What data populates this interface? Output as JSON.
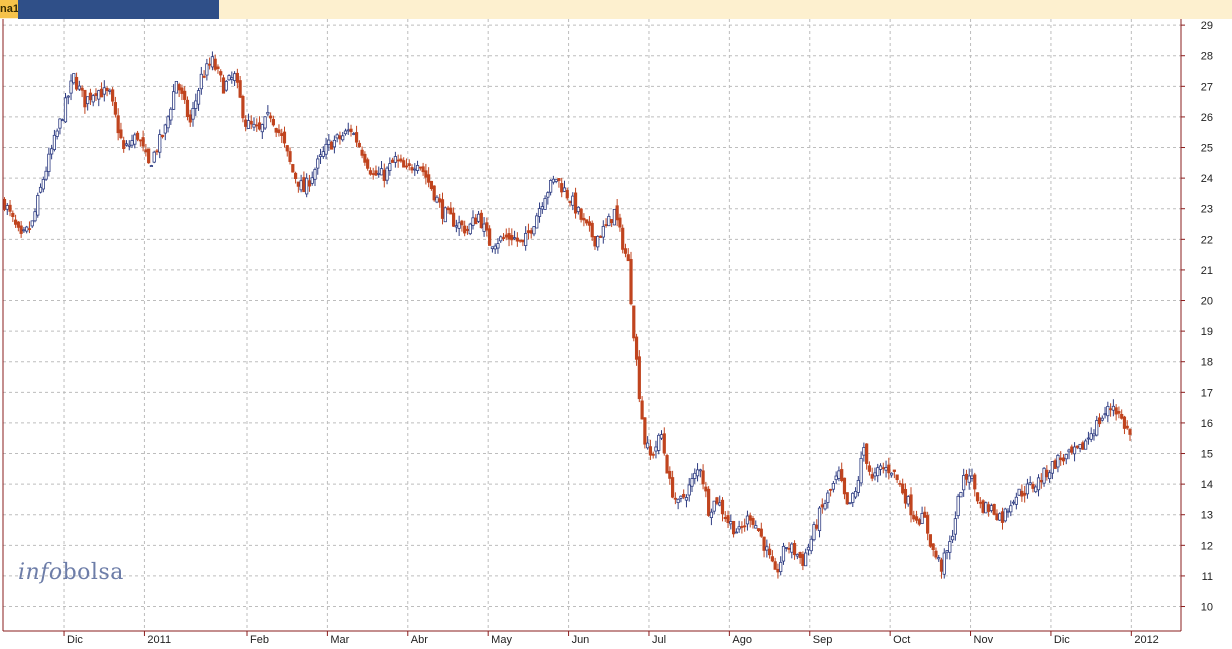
{
  "header": {
    "tab_label": "na1"
  },
  "watermark": {
    "part1": "info",
    "part2": "bolsa"
  },
  "chart_data": {
    "type": "candlestick",
    "y_ticks": [
      10,
      11,
      12,
      13,
      14,
      15,
      16,
      17,
      18,
      19,
      20,
      21,
      22,
      23,
      24,
      25,
      26,
      27,
      28,
      29
    ],
    "ylim": [
      9.2,
      29.2
    ],
    "x_labels": [
      "Dic",
      "2011",
      "Feb",
      "Mar",
      "Abr",
      "May",
      "Jun",
      "Jul",
      "Ago",
      "Sep",
      "Oct",
      "Nov",
      "Dic",
      "2012"
    ],
    "month_index": [
      13,
      42,
      79,
      108,
      137,
      166,
      195,
      224,
      253,
      282,
      311,
      340,
      369,
      398
    ],
    "grid": true,
    "colors": {
      "up": "#2e3c82",
      "down": "#c0441f",
      "grid": "#bdbdbd",
      "frame": "#8a1c1c"
    },
    "n_days": 418,
    "closes": [
      [
        0,
        23.2
      ],
      [
        6,
        22.0
      ],
      [
        10,
        22.5
      ],
      [
        14,
        24.0
      ],
      [
        18,
        25.2
      ],
      [
        25,
        27.3
      ],
      [
        29,
        26.5
      ],
      [
        33,
        26.9
      ],
      [
        38,
        26.7
      ],
      [
        43,
        24.9
      ],
      [
        48,
        25.4
      ],
      [
        52,
        24.4
      ],
      [
        58,
        25.6
      ],
      [
        62,
        27.2
      ],
      [
        67,
        25.8
      ],
      [
        71,
        27.3
      ],
      [
        75,
        27.8
      ],
      [
        79,
        27.0
      ],
      [
        83,
        27.3
      ],
      [
        87,
        25.8
      ],
      [
        92,
        25.5
      ],
      [
        96,
        26.1
      ],
      [
        100,
        25.3
      ],
      [
        104,
        24.2
      ],
      [
        108,
        23.6
      ],
      [
        112,
        24.3
      ],
      [
        117,
        25.1
      ],
      [
        121,
        25.3
      ],
      [
        125,
        25.6
      ],
      [
        129,
        24.9
      ],
      [
        133,
        24.1
      ],
      [
        137,
        24.1
      ],
      [
        141,
        24.6
      ],
      [
        145,
        24.2
      ],
      [
        149,
        24.6
      ],
      [
        154,
        23.7
      ],
      [
        158,
        22.9
      ],
      [
        162,
        22.6
      ],
      [
        167,
        22.3
      ],
      [
        171,
        22.8
      ],
      [
        175,
        21.9
      ],
      [
        179,
        22.0
      ],
      [
        183,
        22.1
      ],
      [
        187,
        21.8
      ],
      [
        191,
        22.6
      ],
      [
        195,
        23.5
      ],
      [
        199,
        24.0
      ],
      [
        202,
        23.6
      ],
      [
        205,
        23.2
      ],
      [
        209,
        22.5
      ],
      [
        213,
        22.0
      ],
      [
        217,
        22.4
      ],
      [
        220,
        22.9
      ],
      [
        222,
        22.2
      ],
      [
        225,
        21.2
      ],
      [
        227,
        19.0
      ],
      [
        229,
        17.0
      ],
      [
        231,
        15.4
      ],
      [
        233,
        14.9
      ],
      [
        237,
        15.6
      ],
      [
        240,
        14.0
      ],
      [
        243,
        13.3
      ],
      [
        247,
        13.9
      ],
      [
        251,
        14.6
      ],
      [
        254,
        13.2
      ],
      [
        257,
        13.5
      ],
      [
        261,
        12.8
      ],
      [
        265,
        12.4
      ],
      [
        269,
        13.0
      ],
      [
        272,
        12.5
      ],
      [
        275,
        11.8
      ],
      [
        278,
        11.0
      ],
      [
        282,
        12.0
      ],
      [
        285,
        11.8
      ],
      [
        288,
        11.5
      ],
      [
        291,
        12.2
      ],
      [
        294,
        13.0
      ],
      [
        297,
        13.6
      ],
      [
        301,
        14.3
      ],
      [
        304,
        13.2
      ],
      [
        307,
        13.7
      ],
      [
        310,
        15.2
      ],
      [
        313,
        14.1
      ],
      [
        316,
        14.5
      ],
      [
        320,
        14.5
      ],
      [
        324,
        13.8
      ],
      [
        328,
        13.0
      ],
      [
        332,
        12.8
      ],
      [
        335,
        11.8
      ],
      [
        338,
        11.3
      ],
      [
        341,
        12.0
      ],
      [
        345,
        13.9
      ],
      [
        348,
        14.4
      ],
      [
        352,
        13.3
      ],
      [
        356,
        13.2
      ],
      [
        360,
        12.9
      ],
      [
        364,
        13.6
      ],
      [
        368,
        13.8
      ],
      [
        372,
        14.0
      ],
      [
        376,
        14.4
      ],
      [
        380,
        14.8
      ],
      [
        384,
        14.9
      ],
      [
        388,
        15.1
      ],
      [
        392,
        15.7
      ],
      [
        396,
        16.2
      ],
      [
        400,
        16.6
      ],
      [
        403,
        16.1
      ],
      [
        406,
        15.6
      ]
    ]
  }
}
